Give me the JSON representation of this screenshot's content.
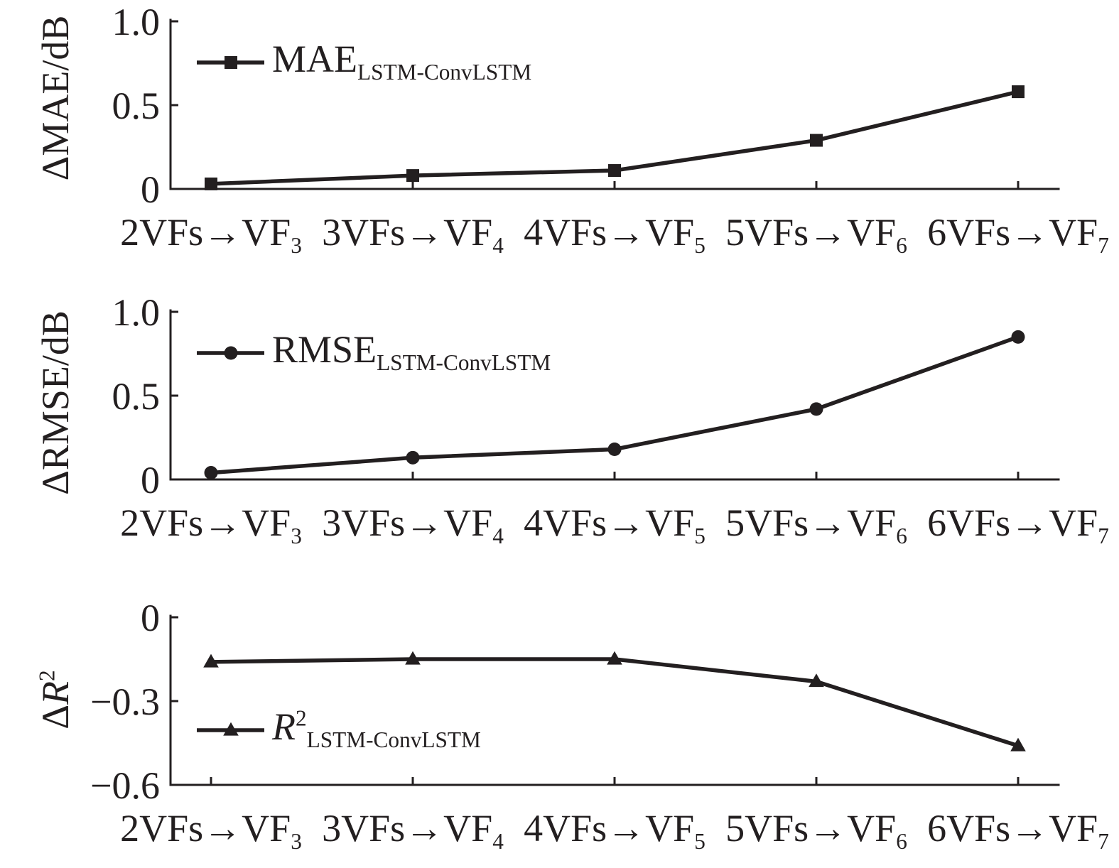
{
  "colors": {
    "background": "#ffffff",
    "ink": "#231f20"
  },
  "chart_data": [
    {
      "type": "line",
      "ylabel": [
        {
          "text": "ΔMAE/dB"
        }
      ],
      "categories": [
        "2VFs→VF3",
        "3VFs→VF4",
        "4VFs→VF5",
        "5VFs→VF6",
        "6VFs→VF7"
      ],
      "ylim": [
        0,
        1.0
      ],
      "yticks": [
        {
          "value": 1.0,
          "label": "1.0"
        },
        {
          "value": 0.5,
          "label": "0.5"
        },
        {
          "value": 0,
          "label": "0"
        }
      ],
      "grid": false,
      "legend_position": "top-left",
      "series": [
        {
          "name": [
            {
              "text": "MAE"
            },
            {
              "text": "LSTM-ConvLSTM",
              "subscript": true
            }
          ],
          "marker": "square",
          "color": "#231f20",
          "values": [
            0.03,
            0.08,
            0.11,
            0.29,
            0.58
          ]
        }
      ]
    },
    {
      "type": "line",
      "ylabel": [
        {
          "text": "ΔRMSE/dB"
        }
      ],
      "categories": [
        "2VFs→VF3",
        "3VFs→VF4",
        "4VFs→VF5",
        "5VFs→VF6",
        "6VFs→VF7"
      ],
      "ylim": [
        0,
        1.0
      ],
      "yticks": [
        {
          "value": 1.0,
          "label": "1.0"
        },
        {
          "value": 0.5,
          "label": "0.5"
        },
        {
          "value": 0,
          "label": "0"
        }
      ],
      "grid": false,
      "legend_position": "top-left",
      "series": [
        {
          "name": [
            {
              "text": "RMSE"
            },
            {
              "text": "LSTM-ConvLSTM",
              "subscript": true
            }
          ],
          "marker": "circle",
          "color": "#231f20",
          "values": [
            0.04,
            0.13,
            0.18,
            0.42,
            0.85
          ]
        }
      ]
    },
    {
      "type": "line",
      "ylabel": [
        {
          "text": "Δ"
        },
        {
          "text": "R",
          "italic": true
        },
        {
          "text": "2",
          "superscript": true
        }
      ],
      "categories": [
        "2VFs→VF3",
        "3VFs→VF4",
        "4VFs→VF5",
        "5VFs→VF6",
        "6VFs→VF7"
      ],
      "ylim": [
        -0.6,
        0
      ],
      "yticks": [
        {
          "value": 0,
          "label": "0"
        },
        {
          "value": -0.3,
          "label": "−0.3"
        },
        {
          "value": -0.6,
          "label": "−0.6"
        }
      ],
      "grid": false,
      "legend_position": "bottom-left",
      "series": [
        {
          "name": [
            {
              "text": "R",
              "italic": true
            },
            {
              "text": "2",
              "superscript": true
            },
            {
              "text": "LSTM-ConvLSTM",
              "subscript": true
            }
          ],
          "marker": "triangle",
          "color": "#231f20",
          "values": [
            -0.16,
            -0.15,
            -0.15,
            -0.23,
            -0.46
          ]
        }
      ]
    }
  ]
}
